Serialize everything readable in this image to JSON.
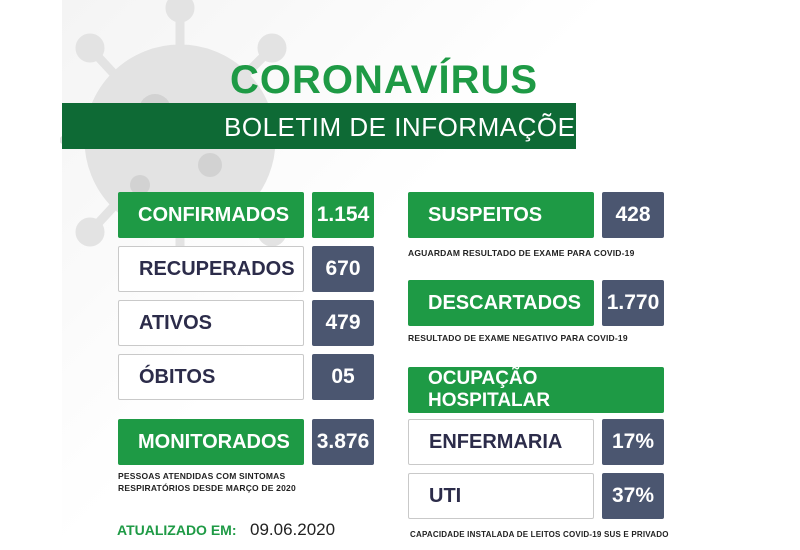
{
  "header": {
    "title": "CORONAVÍRUS",
    "subtitle": "BOLETIM DE INFORMAÇÕES"
  },
  "left": {
    "confirmados": {
      "label": "CONFIRMADOS",
      "value": "1.154"
    },
    "recuperados": {
      "label": "RECUPERADOS",
      "value": "670"
    },
    "ativos": {
      "label": "ATIVOS",
      "value": "479"
    },
    "obitos": {
      "label": "ÓBITOS",
      "value": "05"
    },
    "monitorados": {
      "label": "MONITORADOS",
      "value": "3.876"
    },
    "monitorados_note_1": "PESSOAS ATENDIDAS COM SINTOMAS",
    "monitorados_note_2": "RESPIRATÓRIOS DESDE MARÇO DE 2020"
  },
  "right": {
    "suspeitos": {
      "label": "SUSPEITOS",
      "value": "428",
      "note": "AGUARDAM RESULTADO DE EXAME PARA COVID-19"
    },
    "descartados": {
      "label": "DESCARTADOS",
      "value": "1.770",
      "note": "RESULTADO DE EXAME NEGATIVO PARA COVID-19"
    },
    "ocupacao": {
      "label": "OCUPAÇÃO HOSPITALAR"
    },
    "enfermaria": {
      "label": "ENFERMARIA",
      "value": "17%"
    },
    "uti": {
      "label": "UTI",
      "value": "37%"
    },
    "capacidade_note": "CAPACIDADE INSTALADA DE LEITOS COVID-19 SUS E PRIVADO"
  },
  "footer": {
    "updated_label": "ATUALIZADO EM:",
    "updated_date": "09.06.2020"
  },
  "colors": {
    "green": "#1e9a45",
    "dark_green": "#0e6a35",
    "slate": "#4b5670"
  }
}
